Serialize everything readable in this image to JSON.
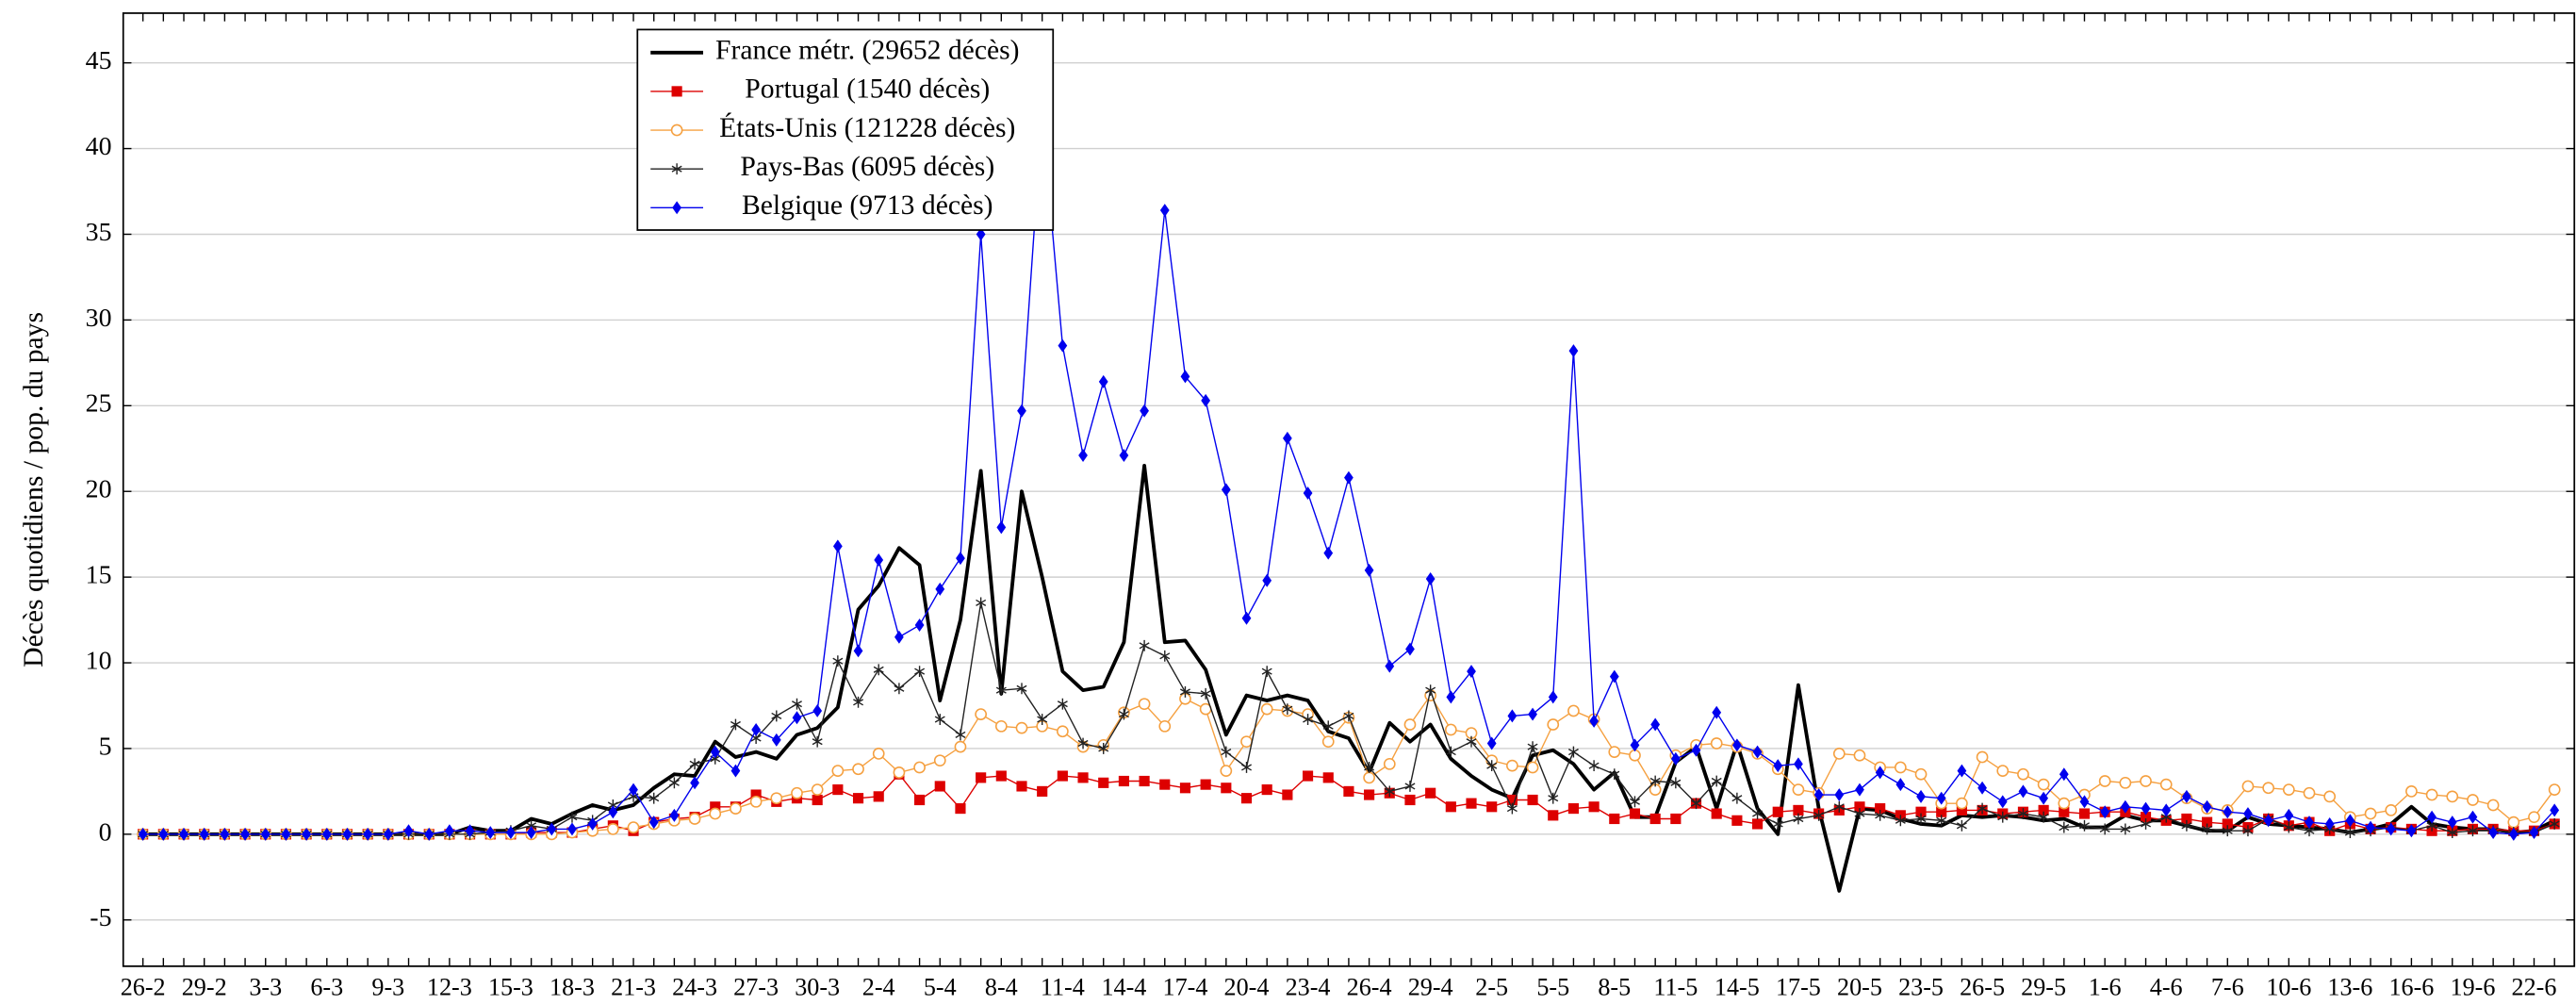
{
  "chart_data": {
    "type": "line",
    "y_label": "Décès quotidiens / pop. du pays",
    "categories": [
      "26-2",
      null,
      null,
      "29-2",
      null,
      null,
      "3-3",
      null,
      null,
      "6-3",
      null,
      null,
      "9-3",
      null,
      null,
      "12-3",
      null,
      null,
      "15-3",
      null,
      null,
      "18-3",
      null,
      null,
      "21-3",
      null,
      null,
      "24-3",
      null,
      null,
      "27-3",
      null,
      null,
      "30-3",
      null,
      null,
      "2-4",
      null,
      null,
      "5-4",
      null,
      null,
      "8-4",
      null,
      null,
      "11-4",
      null,
      null,
      "14-4",
      null,
      null,
      "17-4",
      null,
      null,
      "20-4",
      null,
      null,
      "23-4",
      null,
      null,
      "26-4",
      null,
      null,
      "29-4",
      null,
      null,
      "2-5",
      null,
      null,
      "5-5",
      null,
      null,
      "8-5",
      null,
      null,
      "11-5",
      null,
      null,
      "14-5",
      null,
      null,
      "17-5",
      null,
      null,
      "20-5",
      null,
      null,
      "23-5",
      null,
      null,
      "26-5",
      null,
      null,
      "29-5",
      null,
      null,
      "1-6",
      null,
      null,
      "4-6",
      null,
      null,
      "7-6",
      null,
      null,
      "10-6",
      null,
      null,
      "13-6",
      null,
      null,
      "16-6",
      null,
      null,
      "19-6",
      null,
      null,
      "22-6",
      null
    ],
    "series": [
      {
        "name": "France métr. (29652 décès)",
        "color": "#000000",
        "marker": "none",
        "line_width": 2.2,
        "values": [
          0,
          0,
          0,
          0,
          0,
          0,
          0,
          0,
          0,
          0,
          0,
          0,
          0,
          0,
          0,
          0,
          0.4,
          0.2,
          0.2,
          0.9,
          0.6,
          1.2,
          1.7,
          1.4,
          1.7,
          2.7,
          3.5,
          3.4,
          5.4,
          4.5,
          4.8,
          4.4,
          5.8,
          6.2,
          7.4,
          13.1,
          14.5,
          16.7,
          15.7,
          7.8,
          12.5,
          21.2,
          8.2,
          20.0,
          15.0,
          9.5,
          8.4,
          8.6,
          11.2,
          21.5,
          11.2,
          11.3,
          9.6,
          5.8,
          8.1,
          7.8,
          8.1,
          7.8,
          6.0,
          5.6,
          3.6,
          6.5,
          5.4,
          6.4,
          4.4,
          3.4,
          2.6,
          2.1,
          4.6,
          4.9,
          4.1,
          2.6,
          3.6,
          1.0,
          1.0,
          4.2,
          5.1,
          1.5,
          5.3,
          1.5,
          0.0,
          8.7,
          1.5,
          -3.3,
          1.5,
          1.4,
          0.9,
          0.6,
          0.5,
          1.1,
          1.0,
          1.1,
          1.0,
          0.8,
          0.9,
          0.4,
          0.4,
          1.1,
          0.8,
          0.8,
          0.5,
          0.2,
          0.2,
          1.0,
          0.6,
          0.5,
          0.4,
          0.3,
          0.1,
          0.3,
          0.6,
          1.6,
          0.6,
          0.4,
          0.3,
          0.3,
          0.1,
          0.2,
          0.8
        ]
      },
      {
        "name": "Portugal (1540 décès)",
        "color": "#dd0000",
        "marker": "square",
        "line_width": 0.8,
        "values": [
          0,
          0,
          0,
          0,
          0,
          0,
          0,
          0,
          0,
          0,
          0,
          0,
          0,
          0,
          0,
          0,
          0,
          0,
          0,
          0.1,
          0.1,
          0.1,
          0.3,
          0.5,
          0.2,
          0.7,
          0.9,
          1.0,
          1.6,
          1.6,
          2.3,
          1.9,
          2.1,
          2.0,
          2.6,
          2.1,
          2.2,
          3.5,
          2.0,
          2.8,
          1.5,
          3.3,
          3.4,
          2.8,
          2.5,
          3.4,
          3.3,
          3.0,
          3.1,
          3.1,
          2.9,
          2.7,
          2.9,
          2.7,
          2.1,
          2.6,
          2.3,
          3.4,
          3.3,
          2.5,
          2.3,
          2.4,
          2.0,
          2.4,
          1.6,
          1.8,
          1.6,
          2.0,
          2.0,
          1.1,
          1.5,
          1.6,
          0.9,
          1.2,
          0.9,
          0.9,
          1.8,
          1.2,
          0.8,
          0.6,
          1.3,
          1.4,
          1.2,
          1.4,
          1.6,
          1.5,
          1.1,
          1.3,
          1.3,
          1.4,
          1.4,
          1.2,
          1.3,
          1.4,
          1.3,
          1.2,
          1.3,
          1.3,
          1.0,
          0.8,
          0.9,
          0.7,
          0.6,
          0.4,
          0.9,
          0.5,
          0.7,
          0.2,
          0.6,
          0.3,
          0.4,
          0.3,
          0.2,
          0.2,
          0.3,
          0.3,
          0.2,
          0.2,
          0.6
        ]
      },
      {
        "name": "États-Unis (121228 décès)",
        "color": "#f5a040",
        "marker": "circle",
        "line_width": 0.8,
        "values": [
          0,
          0,
          0,
          0,
          0,
          0,
          0,
          0,
          0,
          0,
          0,
          0,
          0,
          0,
          0,
          0,
          0,
          0,
          0,
          0,
          0,
          0.1,
          0.2,
          0.3,
          0.4,
          0.6,
          0.8,
          0.9,
          1.2,
          1.5,
          1.9,
          2.1,
          2.4,
          2.6,
          3.7,
          3.8,
          4.7,
          3.6,
          3.9,
          4.3,
          5.1,
          7.0,
          6.3,
          6.2,
          6.3,
          6.0,
          5.1,
          5.2,
          7.1,
          7.6,
          6.3,
          7.9,
          7.3,
          3.7,
          5.4,
          7.3,
          7.2,
          7.0,
          5.4,
          6.8,
          3.3,
          4.1,
          6.4,
          8.1,
          6.1,
          5.9,
          4.3,
          4.0,
          3.9,
          6.4,
          7.2,
          6.7,
          4.8,
          4.6,
          2.6,
          4.6,
          5.2,
          5.3,
          5.1,
          4.7,
          3.8,
          2.6,
          2.4,
          4.7,
          4.6,
          3.9,
          3.9,
          3.5,
          1.8,
          1.8,
          4.5,
          3.7,
          3.5,
          2.9,
          1.8,
          2.3,
          3.1,
          3.0,
          3.1,
          2.9,
          2.1,
          1.5,
          1.4,
          2.8,
          2.7,
          2.6,
          2.4,
          2.2,
          1.0,
          1.2,
          1.4,
          2.5,
          2.3,
          2.2,
          2.0,
          1.7,
          0.7,
          1.0,
          2.6
        ]
      },
      {
        "name": "Pays-Bas (6095 décès)",
        "color": "#222222",
        "marker": "star",
        "line_width": 0.8,
        "values": [
          0,
          0,
          0,
          0,
          0,
          0,
          0,
          0,
          0,
          0,
          0,
          0,
          0,
          0,
          0,
          0,
          0,
          0.1,
          0.2,
          0.5,
          0.3,
          1.0,
          0.8,
          1.7,
          2.2,
          2.1,
          3.0,
          4.1,
          4.4,
          6.4,
          5.6,
          6.9,
          7.6,
          5.4,
          10.1,
          7.7,
          9.6,
          8.5,
          9.5,
          6.7,
          5.8,
          13.5,
          8.4,
          8.5,
          6.7,
          7.6,
          5.3,
          5.0,
          7.0,
          11.0,
          10.4,
          8.3,
          8.2,
          4.8,
          3.9,
          9.5,
          7.3,
          6.7,
          6.3,
          6.9,
          3.9,
          2.5,
          2.8,
          8.4,
          4.8,
          5.4,
          4.0,
          1.5,
          5.1,
          2.1,
          4.8,
          4.0,
          3.5,
          1.9,
          3.1,
          3.0,
          1.8,
          3.1,
          2.1,
          1.2,
          0.6,
          0.9,
          1.1,
          1.6,
          1.2,
          1.1,
          0.8,
          0.9,
          0.8,
          0.5,
          1.5,
          1.0,
          1.2,
          1.0,
          0.4,
          0.5,
          0.3,
          0.3,
          0.6,
          1.0,
          0.5,
          0.3,
          0.2,
          0.2,
          0.9,
          0.4,
          0.2,
          0.3,
          0.1,
          0.2,
          0.4,
          0.2,
          0.5,
          0.1,
          0.2,
          0.2,
          0.1,
          0.1,
          0.6
        ]
      },
      {
        "name": "Belgique (9713 décès)",
        "color": "#0000ee",
        "marker": "diamond",
        "line_width": 0.8,
        "values": [
          0,
          0,
          0,
          0,
          0,
          0,
          0,
          0,
          0,
          0,
          0,
          0,
          0,
          0.2,
          0,
          0.2,
          0.2,
          0.1,
          0.1,
          0.1,
          0.3,
          0.3,
          0.6,
          1.3,
          2.6,
          0.7,
          1.1,
          3.0,
          4.8,
          3.7,
          6.1,
          5.5,
          6.8,
          7.2,
          16.8,
          10.7,
          16.0,
          11.5,
          12.2,
          14.3,
          16.1,
          35.0,
          17.9,
          24.7,
          42.0,
          28.5,
          22.1,
          26.4,
          22.1,
          24.7,
          36.4,
          26.7,
          25.3,
          20.1,
          12.6,
          14.8,
          23.1,
          19.9,
          16.4,
          20.8,
          15.4,
          9.8,
          10.8,
          14.9,
          8.0,
          9.5,
          5.3,
          6.9,
          7.0,
          8.0,
          28.2,
          6.6,
          9.2,
          5.2,
          6.4,
          4.4,
          4.9,
          7.1,
          5.2,
          4.8,
          4.0,
          4.1,
          2.3,
          2.3,
          2.6,
          3.6,
          2.9,
          2.2,
          2.1,
          3.7,
          2.7,
          1.9,
          2.5,
          2.1,
          3.5,
          1.9,
          1.3,
          1.6,
          1.5,
          1.4,
          2.2,
          1.6,
          1.3,
          1.2,
          0.8,
          1.1,
          0.7,
          0.6,
          0.8,
          0.4,
          0.3,
          0.2,
          1.0,
          0.7,
          1.0,
          0.1,
          0.0,
          0.1,
          1.4
        ]
      }
    ],
    "ylim": [
      -7.7,
      47.9
    ],
    "yticks": [
      -5,
      0,
      5,
      10,
      15,
      20,
      25,
      30,
      35,
      40,
      45
    ],
    "grid": true,
    "legend": "upper left"
  }
}
